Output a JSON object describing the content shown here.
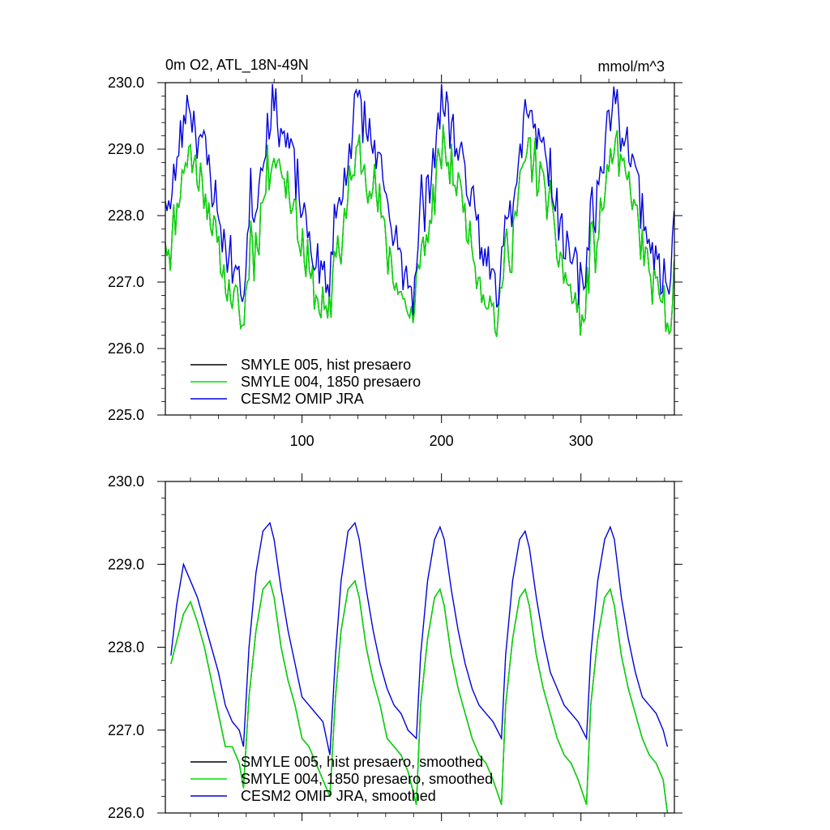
{
  "figure": {
    "title_left": "0m O2, ATL_18N-49N",
    "title_right": "mmol/m^3"
  },
  "chart_data": [
    {
      "type": "line",
      "panel": "top",
      "title": "0m O2, ATL_18N-49N",
      "units": "mmol/m^3",
      "xlim": [
        2,
        367
      ],
      "ylim": [
        225.0,
        230.0
      ],
      "x_ticks": [
        100,
        200,
        300
      ],
      "y_ticks": [
        225.0,
        226.0,
        227.0,
        228.0,
        229.0,
        230.0
      ],
      "y_tick_labels": [
        "225.0",
        "226.0",
        "227.0",
        "228.0",
        "229.0",
        "230.0"
      ],
      "x_tick_labels": [
        "100",
        "200",
        "300"
      ],
      "cycle_length_days": 61,
      "anchor_x": [
        0,
        3,
        8,
        12,
        16,
        22,
        30,
        36,
        40,
        45,
        52,
        56,
        61
      ],
      "series": [
        {
          "name": "SMYLE 005, hist presaero",
          "color": "#000000",
          "anchor_y": [
            227.8,
            227.4,
            228.1,
            228.6,
            229.0,
            228.7,
            228.3,
            227.6,
            227.3,
            226.9,
            226.6,
            226.3,
            227.6
          ],
          "noise_amp": 0.35,
          "seed": 11
        },
        {
          "name": "SMYLE 004, 1850 presaero",
          "color": "#00dd00",
          "anchor_y": [
            227.8,
            227.4,
            228.1,
            228.6,
            229.0,
            228.7,
            228.3,
            227.6,
            227.3,
            226.9,
            226.6,
            226.3,
            227.6
          ],
          "noise_amp": 0.35,
          "seed": 11
        },
        {
          "name": "CESM2 OMIP JRA",
          "color": "#0000dd",
          "anchor_y": [
            228.4,
            228.0,
            228.8,
            229.3,
            229.8,
            229.3,
            228.9,
            228.2,
            227.8,
            227.4,
            227.1,
            226.8,
            228.2
          ],
          "noise_amp": 0.32,
          "seed": 23
        }
      ],
      "legend": [
        "SMYLE 005, hist presaero",
        "SMYLE 004, 1850 presaero",
        "CESM2 OMIP JRA"
      ],
      "legend_position": "bottom-left"
    },
    {
      "type": "line",
      "panel": "bottom",
      "xlim": [
        2,
        367
      ],
      "ylim": [
        226.0,
        230.0
      ],
      "x_ticks": [
        100,
        200,
        300
      ],
      "y_ticks": [
        226.0,
        227.0,
        228.0,
        229.0,
        230.0
      ],
      "y_tick_labels": [
        "226.0",
        "227.0",
        "228.0",
        "229.0",
        "230.0"
      ],
      "cycle_length_days": 61,
      "series": [
        {
          "name": "SMYLE 005, hist presaero, smoothed",
          "color": "#000000",
          "x": [
            6,
            15,
            20,
            25,
            30,
            35,
            40,
            45,
            50,
            55,
            58,
            62,
            67,
            72,
            77,
            80,
            85,
            90,
            95,
            100,
            105,
            110,
            115,
            120,
            124,
            128,
            133,
            138,
            141,
            146,
            151,
            156,
            161,
            166,
            171,
            176,
            182,
            185,
            190,
            195,
            199,
            202,
            207,
            212,
            217,
            222,
            227,
            232,
            237,
            243,
            246,
            251,
            256,
            260,
            263,
            268,
            273,
            278,
            283,
            288,
            293,
            298,
            304,
            307,
            312,
            317,
            321,
            324,
            329,
            334,
            339,
            344,
            349,
            354,
            359,
            362
          ],
          "y": [
            227.8,
            228.4,
            228.55,
            228.3,
            228.0,
            227.6,
            227.2,
            226.8,
            226.8,
            226.6,
            226.3,
            227.4,
            228.2,
            228.7,
            228.8,
            228.6,
            228.0,
            227.6,
            227.3,
            226.9,
            226.8,
            226.6,
            226.4,
            226.2,
            227.4,
            228.2,
            228.7,
            228.8,
            228.6,
            228.0,
            227.6,
            227.3,
            226.9,
            226.8,
            226.7,
            226.5,
            226.1,
            227.3,
            228.1,
            228.6,
            228.7,
            228.5,
            227.9,
            227.5,
            227.2,
            226.9,
            226.7,
            226.6,
            226.4,
            226.1,
            227.3,
            228.1,
            228.6,
            228.7,
            228.5,
            227.9,
            227.5,
            227.2,
            226.9,
            226.7,
            226.6,
            226.4,
            226.1,
            227.3,
            228.1,
            228.6,
            228.7,
            228.5,
            227.9,
            227.5,
            227.2,
            226.9,
            226.7,
            226.6,
            226.4,
            226.0
          ]
        },
        {
          "name": "SMYLE 004, 1850 presaero, smoothed",
          "color": "#00dd00",
          "x": [
            6,
            15,
            20,
            25,
            30,
            35,
            40,
            45,
            50,
            55,
            58,
            62,
            67,
            72,
            77,
            80,
            85,
            90,
            95,
            100,
            105,
            110,
            115,
            120,
            124,
            128,
            133,
            138,
            141,
            146,
            151,
            156,
            161,
            166,
            171,
            176,
            182,
            185,
            190,
            195,
            199,
            202,
            207,
            212,
            217,
            222,
            227,
            232,
            237,
            243,
            246,
            251,
            256,
            260,
            263,
            268,
            273,
            278,
            283,
            288,
            293,
            298,
            304,
            307,
            312,
            317,
            321,
            324,
            329,
            334,
            339,
            344,
            349,
            354,
            359,
            362
          ],
          "y": [
            227.8,
            228.4,
            228.55,
            228.3,
            228.0,
            227.6,
            227.2,
            226.8,
            226.8,
            226.6,
            226.3,
            227.4,
            228.2,
            228.7,
            228.8,
            228.6,
            228.0,
            227.6,
            227.3,
            226.9,
            226.8,
            226.6,
            226.4,
            226.2,
            227.4,
            228.2,
            228.7,
            228.8,
            228.6,
            228.0,
            227.6,
            227.3,
            226.9,
            226.8,
            226.7,
            226.5,
            226.1,
            227.3,
            228.1,
            228.6,
            228.7,
            228.5,
            227.9,
            227.5,
            227.2,
            226.9,
            226.7,
            226.6,
            226.4,
            226.1,
            227.3,
            228.1,
            228.6,
            228.7,
            228.5,
            227.9,
            227.5,
            227.2,
            226.9,
            226.7,
            226.6,
            226.4,
            226.1,
            227.3,
            228.1,
            228.6,
            228.7,
            228.5,
            227.9,
            227.5,
            227.2,
            226.9,
            226.7,
            226.6,
            226.4,
            226.0
          ]
        },
        {
          "name": "CESM2 OMIP JRA, smoothed",
          "color": "#0000dd",
          "x": [
            6,
            10,
            15,
            20,
            25,
            30,
            35,
            40,
            45,
            50,
            55,
            58,
            62,
            67,
            72,
            77,
            80,
            85,
            90,
            95,
            100,
            105,
            110,
            115,
            120,
            124,
            128,
            133,
            138,
            141,
            146,
            151,
            156,
            161,
            166,
            171,
            176,
            182,
            185,
            190,
            195,
            199,
            202,
            207,
            212,
            217,
            222,
            227,
            232,
            237,
            243,
            246,
            251,
            256,
            260,
            263,
            268,
            273,
            278,
            283,
            288,
            293,
            298,
            304,
            307,
            312,
            317,
            321,
            324,
            329,
            334,
            339,
            344,
            349,
            354,
            359,
            362
          ],
          "y": [
            227.9,
            228.5,
            229.0,
            228.8,
            228.6,
            228.3,
            228.0,
            227.7,
            227.3,
            227.1,
            227.0,
            226.8,
            228.0,
            228.9,
            229.4,
            229.5,
            229.3,
            228.7,
            228.2,
            227.8,
            227.4,
            227.3,
            227.2,
            227.1,
            226.7,
            227.9,
            228.8,
            229.4,
            229.5,
            229.3,
            228.7,
            228.2,
            227.8,
            227.5,
            227.3,
            227.2,
            227.0,
            226.9,
            227.9,
            228.8,
            229.3,
            229.45,
            229.3,
            228.7,
            228.2,
            227.8,
            227.5,
            227.3,
            227.2,
            227.1,
            226.9,
            227.9,
            228.8,
            229.3,
            229.4,
            229.2,
            228.6,
            228.1,
            227.7,
            227.5,
            227.3,
            227.2,
            227.1,
            226.9,
            227.9,
            228.8,
            229.3,
            229.45,
            229.3,
            228.6,
            228.1,
            227.7,
            227.4,
            227.3,
            227.2,
            227.0,
            226.8
          ]
        }
      ],
      "legend": [
        "SMYLE 005, hist presaero, smoothed",
        "SMYLE 004, 1850 presaero, smoothed",
        "CESM2 OMIP JRA, smoothed"
      ],
      "legend_position": "bottom-left"
    }
  ]
}
